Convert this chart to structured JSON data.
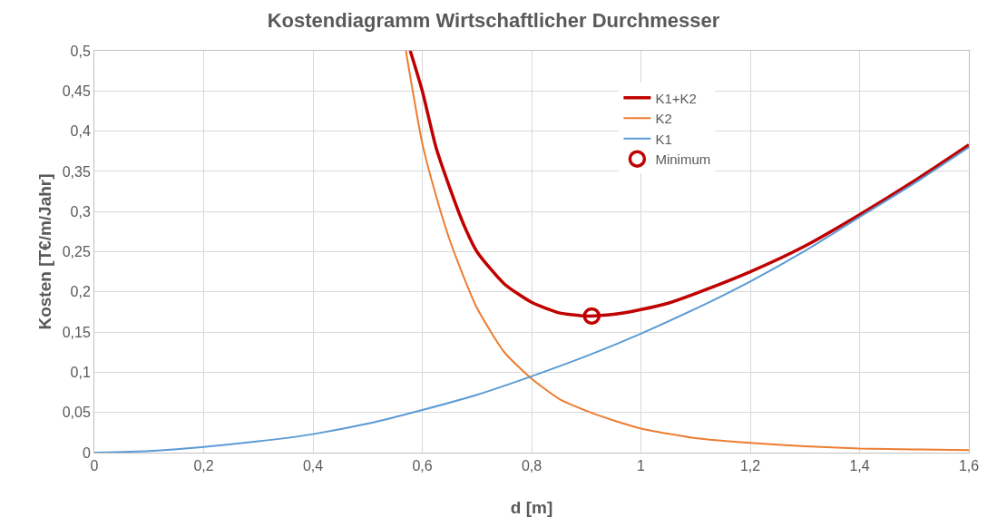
{
  "chart_data": {
    "type": "line",
    "title": "Kostendiagramm Wirtschaftlicher Durchmesser",
    "xlabel": "d [m]",
    "ylabel": "Kosten [T€/m/Jahr]",
    "xlim": [
      0,
      1.6
    ],
    "ylim": [
      0,
      0.5
    ],
    "xticks": [
      0,
      {
        "value": 0.2,
        "label": "0,2"
      },
      {
        "value": 0.4,
        "label": "0,4"
      },
      {
        "value": 0.6,
        "label": "0,6"
      },
      {
        "value": 0.8,
        "label": "0,8"
      },
      1,
      {
        "value": 1.2,
        "label": "1,2"
      },
      {
        "value": 1.4,
        "label": "1,4"
      },
      {
        "value": 1.6,
        "label": "1,6"
      }
    ],
    "yticks": [
      0,
      {
        "value": 0.05,
        "label": "0,05"
      },
      {
        "value": 0.1,
        "label": "0,1"
      },
      {
        "value": 0.15,
        "label": "0,15"
      },
      {
        "value": 0.2,
        "label": "0,2"
      },
      {
        "value": 0.25,
        "label": "0,25"
      },
      {
        "value": 0.3,
        "label": "0,3"
      },
      {
        "value": 0.35,
        "label": "0,35"
      },
      {
        "value": 0.4,
        "label": "0,4"
      },
      {
        "value": 0.45,
        "label": "0,45"
      },
      {
        "value": 0.5,
        "label": "0,5"
      }
    ],
    "grid": true,
    "legend": "top right",
    "marker": "none",
    "line_style": "solid",
    "series": [
      {
        "name": "K1+K2",
        "color": "#c00000",
        "x": [
          0.578,
          0.6,
          0.625,
          0.65,
          0.675,
          0.7,
          0.75,
          0.8,
          0.85,
          0.9,
          0.95,
          1.0,
          1.05,
          1.1,
          1.2,
          1.3,
          1.4,
          1.5,
          1.6
        ],
        "values": [
          0.5,
          0.45,
          0.38,
          0.33,
          0.285,
          0.25,
          0.21,
          0.187,
          0.174,
          0.17,
          0.172,
          0.178,
          0.186,
          0.198,
          0.225,
          0.257,
          0.296,
          0.338,
          0.383
        ]
      },
      {
        "name": "K2",
        "color": "#ed7d31",
        "x": [
          0.57,
          0.6,
          0.625,
          0.65,
          0.675,
          0.7,
          0.75,
          0.8,
          0.85,
          0.9,
          0.95,
          1.0,
          1.1,
          1.2,
          1.3,
          1.4,
          1.5,
          1.6
        ],
        "values": [
          0.5,
          0.385,
          0.32,
          0.265,
          0.22,
          0.18,
          0.125,
          0.092,
          0.067,
          0.052,
          0.04,
          0.03,
          0.018,
          0.012,
          0.008,
          0.005,
          0.004,
          0.003
        ]
      },
      {
        "name": "K1",
        "color": "#5b9bd5",
        "x": [
          0,
          0.1,
          0.2,
          0.3,
          0.4,
          0.5,
          0.6,
          0.7,
          0.8,
          0.9,
          1.0,
          1.1,
          1.2,
          1.3,
          1.4,
          1.5,
          1.6
        ],
        "values": [
          0,
          0.002,
          0.007,
          0.014,
          0.023,
          0.036,
          0.053,
          0.072,
          0.095,
          0.12,
          0.148,
          0.179,
          0.213,
          0.251,
          0.293,
          0.335,
          0.38
        ]
      },
      {
        "name": "Minimum",
        "type": "scatter",
        "marker": "circle",
        "color": "#c00000",
        "x": [
          0.91
        ],
        "values": [
          0.17
        ]
      }
    ]
  }
}
